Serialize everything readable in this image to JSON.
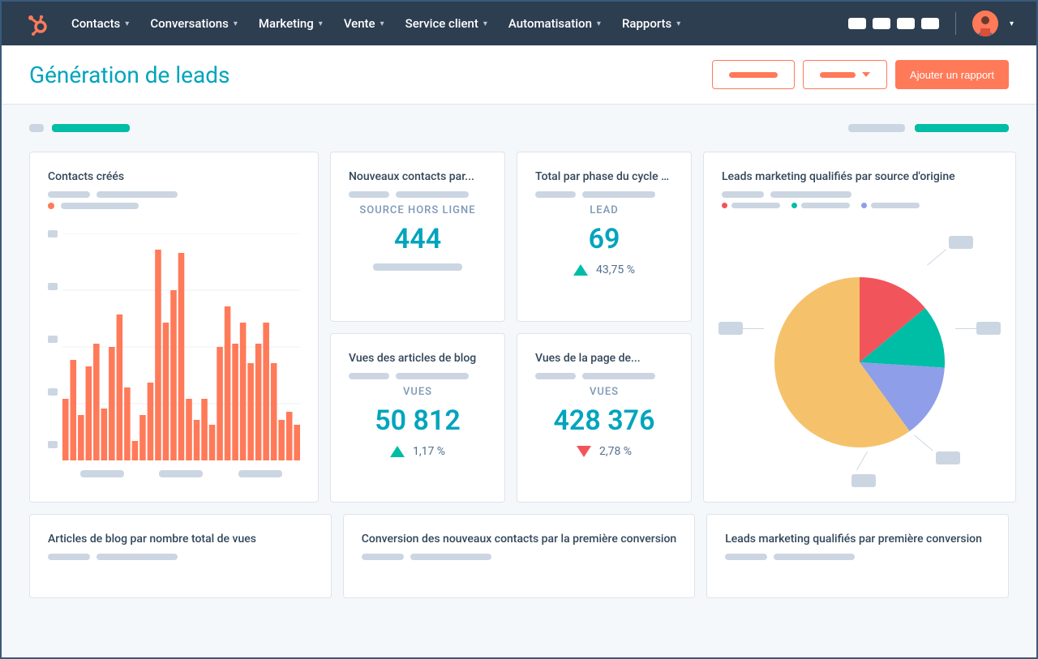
{
  "nav": {
    "items": [
      "Contacts",
      "Conversations",
      "Marketing",
      "Vente",
      "Service client",
      "Automatisation",
      "Rapports"
    ]
  },
  "header": {
    "title": "Génération de leads",
    "add_report": "Ajouter un rapport"
  },
  "colors": {
    "brand_orange": "#ff7a59",
    "brand_teal": "#00a4bd",
    "teal_accent": "#00bda5",
    "red": "#f2545b",
    "text": "#33475b",
    "muted": "#7c98b6",
    "skeleton": "#cbd6e2"
  },
  "bar_chart": {
    "title": "Contacts créés",
    "type": "bar",
    "bar_color": "#ff7a59",
    "grid_color": "#eaf0f6",
    "values": [
      38,
      62,
      28,
      58,
      72,
      32,
      70,
      90,
      45,
      12,
      28,
      48,
      130,
      85,
      105,
      128,
      38,
      25,
      38,
      22,
      70,
      95,
      72,
      85,
      60,
      72,
      85,
      60,
      25,
      30,
      22
    ],
    "ylim": [
      0,
      140
    ],
    "ytick_count": 5
  },
  "metric_cards": [
    {
      "title": "Nouveaux contacts par...",
      "label": "SOURCE HORS LIGNE",
      "value": "444",
      "trend": null
    },
    {
      "title": "Total par phase du cycle de...",
      "label": "LEAD",
      "value": "69",
      "trend": {
        "dir": "up",
        "pct": "43,75 %"
      }
    },
    {
      "title": "Vues des articles de blog",
      "label": "VUES",
      "value": "50 812",
      "trend": {
        "dir": "up",
        "pct": "1,17 %"
      }
    },
    {
      "title": "Vues de la page de...",
      "label": "VUES",
      "value": "428 376",
      "trend": {
        "dir": "down",
        "pct": "2,78 %"
      }
    }
  ],
  "pie_chart": {
    "title": "Leads marketing qualifiés par source d'origine",
    "type": "pie",
    "slices": [
      {
        "color": "#f5c26b",
        "value": 50
      },
      {
        "color": "#f2545b",
        "value": 14
      },
      {
        "color": "#00bda5",
        "value": 12
      },
      {
        "color": "#8e9ee8",
        "value": 14
      },
      {
        "color": "#f5c26b",
        "value": 10
      }
    ],
    "legend_colors": [
      "#f2545b",
      "#00bda5",
      "#8e9ee8"
    ]
  },
  "bottom_cards": [
    {
      "title": "Articles de blog par nombre total de vues"
    },
    {
      "title": "Conversion des nouveaux contacts par la première conversion"
    },
    {
      "title": "Leads marketing qualifiés par première conversion"
    }
  ]
}
